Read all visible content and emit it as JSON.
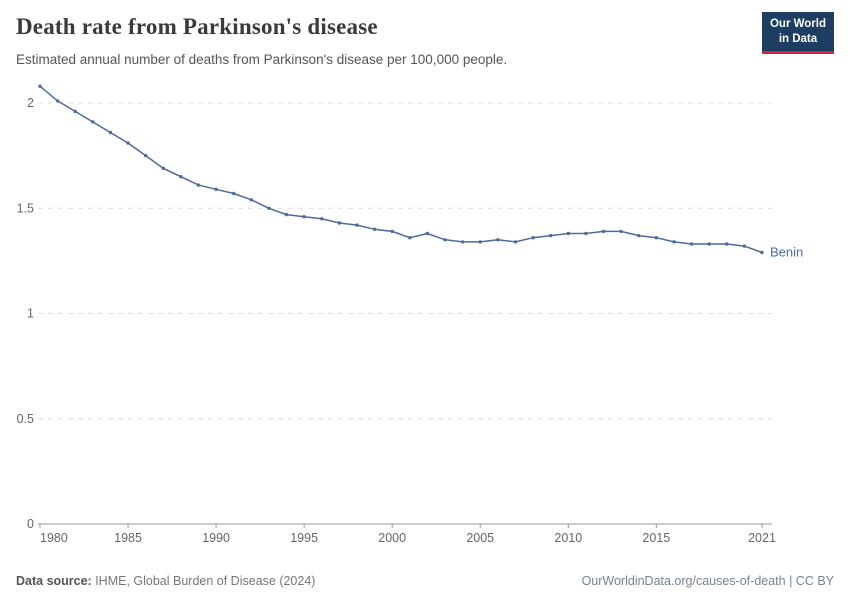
{
  "header": {
    "logo": {
      "line1": "Our World",
      "line2": "in Data",
      "bg_color": "#1d3d63",
      "accent_color": "#cc2a36"
    }
  },
  "footer": {
    "source_label": "Data source:",
    "source_text": " IHME, Global Burden of Disease (2024)",
    "right_text": "OurWorldinData.org/causes-of-death | CC BY"
  },
  "chart_data": {
    "type": "line",
    "title": "Death rate from Parkinson's disease",
    "subtitle": "Estimated annual number of deaths from Parkinson's disease per 100,000 people.",
    "x": [
      1980,
      1981,
      1982,
      1983,
      1984,
      1985,
      1986,
      1987,
      1988,
      1989,
      1990,
      1991,
      1992,
      1993,
      1994,
      1995,
      1996,
      1997,
      1998,
      1999,
      2000,
      2001,
      2002,
      2003,
      2004,
      2005,
      2006,
      2007,
      2008,
      2009,
      2010,
      2011,
      2012,
      2013,
      2014,
      2015,
      2016,
      2017,
      2018,
      2019,
      2020,
      2021
    ],
    "series": [
      {
        "name": "Benin",
        "color": "#4C6A9C",
        "values": [
          2.08,
          2.01,
          1.96,
          1.91,
          1.86,
          1.81,
          1.75,
          1.69,
          1.65,
          1.61,
          1.59,
          1.57,
          1.54,
          1.5,
          1.47,
          1.46,
          1.45,
          1.43,
          1.42,
          1.4,
          1.39,
          1.36,
          1.38,
          1.35,
          1.34,
          1.34,
          1.35,
          1.34,
          1.36,
          1.37,
          1.38,
          1.38,
          1.39,
          1.39,
          1.37,
          1.36,
          1.34,
          1.33,
          1.33,
          1.33,
          1.32,
          1.29
        ]
      }
    ],
    "ylim": [
      0,
      2.08
    ],
    "yticks": [
      0,
      0.5,
      1,
      1.5,
      2
    ],
    "ytick_labels": [
      "0",
      "0.5",
      "1",
      "1.5",
      "2"
    ],
    "xticks": [
      1980,
      1985,
      1990,
      1995,
      2000,
      2005,
      2010,
      2015,
      2021
    ],
    "grid": "horizontal-dashed",
    "legend_position": "end-of-line-label"
  }
}
